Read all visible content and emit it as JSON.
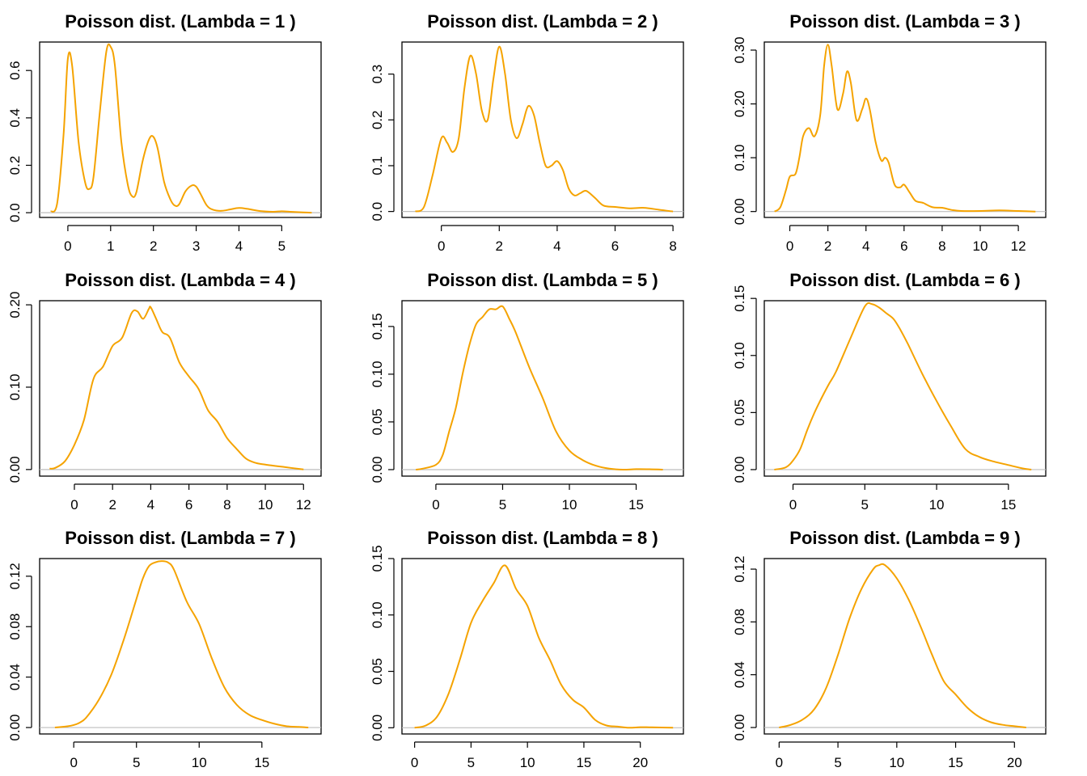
{
  "style": {
    "line_color": "#F5A300",
    "baseline_color": "#BEBEBE"
  },
  "chart_data": [
    {
      "type": "line",
      "title": "Poisson dist. (Lambda = 1 )",
      "xlabel": "",
      "ylabel": "",
      "xlim": [
        -0.66,
        5.92
      ],
      "ylim": [
        -0.02,
        0.72
      ],
      "xticks": [
        0,
        1,
        2,
        3,
        4,
        5
      ],
      "yticks": [
        0.0,
        0.2,
        0.4,
        0.6
      ],
      "ytick_labels": [
        "0.0",
        "0.2",
        "0.4",
        "0.6"
      ],
      "baseline": 0,
      "series": [
        {
          "x": [
            -0.4,
            -0.25,
            -0.1,
            0,
            0.1,
            0.25,
            0.4,
            0.5,
            0.6,
            0.75,
            0.9,
            1,
            1.1,
            1.25,
            1.4,
            1.5,
            1.6,
            1.75,
            1.9,
            2,
            2.1,
            2.25,
            2.4,
            2.5,
            2.6,
            2.75,
            2.9,
            3,
            3.1,
            3.25,
            3.4,
            3.6,
            3.8,
            4,
            4.2,
            4.5,
            4.8,
            5,
            5.2,
            5.5,
            5.7
          ],
          "y": [
            0.005,
            0.04,
            0.33,
            0.65,
            0.62,
            0.3,
            0.13,
            0.1,
            0.15,
            0.43,
            0.68,
            0.7,
            0.62,
            0.3,
            0.12,
            0.07,
            0.085,
            0.22,
            0.31,
            0.32,
            0.27,
            0.13,
            0.055,
            0.03,
            0.035,
            0.09,
            0.115,
            0.11,
            0.08,
            0.03,
            0.012,
            0.008,
            0.014,
            0.02,
            0.016,
            0.007,
            0.004,
            0.006,
            0.004,
            0.001,
            0.0
          ]
        }
      ]
    },
    {
      "type": "line",
      "title": "Poisson dist. (Lambda = 2 )",
      "xlabel": "",
      "ylabel": "",
      "xlim": [
        -1.36,
        8.36
      ],
      "ylim": [
        -0.013,
        0.37
      ],
      "xticks": [
        0,
        2,
        4,
        6,
        8
      ],
      "yticks": [
        0.0,
        0.1,
        0.2,
        0.3
      ],
      "ytick_labels": [
        "0.0",
        "0.1",
        "0.2",
        "0.3"
      ],
      "baseline": 0,
      "series": [
        {
          "x": [
            -0.9,
            -0.6,
            -0.3,
            0,
            0.2,
            0.4,
            0.6,
            0.8,
            1,
            1.2,
            1.4,
            1.6,
            1.8,
            2,
            2.2,
            2.4,
            2.6,
            2.8,
            3,
            3.2,
            3.4,
            3.6,
            3.8,
            4,
            4.2,
            4.4,
            4.6,
            4.8,
            5,
            5.3,
            5.6,
            6,
            6.5,
            7,
            7.5,
            8
          ],
          "y": [
            0.0,
            0.01,
            0.08,
            0.16,
            0.15,
            0.13,
            0.16,
            0.27,
            0.34,
            0.3,
            0.22,
            0.2,
            0.29,
            0.36,
            0.3,
            0.2,
            0.16,
            0.19,
            0.23,
            0.21,
            0.15,
            0.1,
            0.1,
            0.11,
            0.09,
            0.05,
            0.035,
            0.04,
            0.045,
            0.03,
            0.013,
            0.01,
            0.007,
            0.008,
            0.004,
            0.0
          ]
        }
      ]
    },
    {
      "type": "line",
      "title": "Poisson dist. (Lambda = 3 )",
      "xlabel": "",
      "ylabel": "",
      "xlim": [
        -1.34,
        13.44
      ],
      "ylim": [
        -0.011,
        0.315
      ],
      "xticks": [
        0,
        2,
        4,
        6,
        8,
        10,
        12
      ],
      "yticks": [
        0.0,
        0.1,
        0.2,
        0.3
      ],
      "ytick_labels": [
        "0.00",
        "0.10",
        "0.20",
        "0.30"
      ],
      "baseline": 0,
      "series": [
        {
          "x": [
            -0.8,
            -0.5,
            -0.2,
            0,
            0.3,
            0.5,
            0.7,
            1,
            1.3,
            1.6,
            1.8,
            2,
            2.2,
            2.5,
            2.8,
            3,
            3.2,
            3.5,
            3.8,
            4,
            4.2,
            4.5,
            4.8,
            5,
            5.2,
            5.5,
            5.8,
            6,
            6.3,
            6.6,
            7,
            7.5,
            8,
            8.5,
            9,
            10,
            11,
            12,
            12.9
          ],
          "y": [
            0.0,
            0.008,
            0.04,
            0.065,
            0.07,
            0.1,
            0.14,
            0.155,
            0.14,
            0.18,
            0.27,
            0.31,
            0.27,
            0.19,
            0.22,
            0.26,
            0.24,
            0.17,
            0.19,
            0.21,
            0.19,
            0.13,
            0.095,
            0.1,
            0.09,
            0.05,
            0.045,
            0.05,
            0.035,
            0.02,
            0.016,
            0.008,
            0.007,
            0.003,
            0.001,
            0.001,
            0.002,
            0.001,
            0.0
          ]
        }
      ]
    },
    {
      "type": "line",
      "title": "Poisson dist. (Lambda = 4 )",
      "xlabel": "",
      "ylabel": "",
      "xlim": [
        -1.82,
        12.92
      ],
      "ylim": [
        -0.008,
        0.205
      ],
      "xticks": [
        0,
        2,
        4,
        6,
        8,
        10,
        12
      ],
      "yticks": [
        0.0,
        0.1,
        0.2
      ],
      "ytick_labels": [
        "0.00",
        "0.10",
        "0.20"
      ],
      "baseline": 0,
      "series": [
        {
          "x": [
            -1.3,
            -1,
            -0.5,
            0,
            0.5,
            1,
            1.5,
            2,
            2.5,
            3,
            3.3,
            3.6,
            3.9,
            4,
            4.3,
            4.6,
            5,
            5.5,
            6,
            6.5,
            7,
            7.5,
            8,
            8.5,
            9,
            9.5,
            10,
            11,
            12
          ],
          "y": [
            0.001,
            0.002,
            0.01,
            0.03,
            0.06,
            0.11,
            0.125,
            0.15,
            0.16,
            0.19,
            0.192,
            0.183,
            0.195,
            0.197,
            0.182,
            0.167,
            0.16,
            0.13,
            0.113,
            0.098,
            0.072,
            0.058,
            0.038,
            0.025,
            0.013,
            0.008,
            0.006,
            0.003,
            0.0
          ]
        }
      ]
    },
    {
      "type": "line",
      "title": "Poisson dist. (Lambda = 5 )",
      "xlabel": "",
      "ylabel": "",
      "xlim": [
        -2.54,
        18.54
      ],
      "ylim": [
        -0.0068,
        0.177
      ],
      "xticks": [
        0,
        5,
        10,
        15
      ],
      "yticks": [
        0.0,
        0.05,
        0.1,
        0.15
      ],
      "ytick_labels": [
        "0.00",
        "0.05",
        "0.10",
        "0.15"
      ],
      "baseline": 0,
      "series": [
        {
          "x": [
            -1.5,
            -1,
            0,
            0.5,
            1,
            1.5,
            2,
            2.5,
            3,
            3.5,
            4,
            4.5,
            5,
            5.5,
            6,
            7,
            8,
            9,
            10,
            11,
            12,
            13,
            14,
            15,
            16,
            17
          ],
          "y": [
            0.0,
            0.001,
            0.005,
            0.015,
            0.04,
            0.065,
            0.1,
            0.13,
            0.152,
            0.16,
            0.168,
            0.168,
            0.171,
            0.158,
            0.143,
            0.107,
            0.075,
            0.04,
            0.02,
            0.01,
            0.004,
            0.001,
            0.0,
            0.0005,
            0.0004,
            0.0
          ]
        }
      ]
    },
    {
      "type": "line",
      "title": "Poisson dist. (Lambda = 6 )",
      "xlabel": "",
      "ylabel": "",
      "xlim": [
        -2.0,
        17.6
      ],
      "ylim": [
        -0.0057,
        0.148
      ],
      "xticks": [
        0,
        5,
        10,
        15
      ],
      "yticks": [
        0.0,
        0.05,
        0.1,
        0.15
      ],
      "ytick_labels": [
        "0.00",
        "0.05",
        "0.10",
        "0.15"
      ],
      "baseline": 0,
      "series": [
        {
          "x": [
            -1.3,
            -0.5,
            0,
            0.5,
            1,
            1.5,
            2,
            2.5,
            3,
            4,
            5,
            5.5,
            6,
            6.5,
            7,
            7.5,
            8,
            9,
            10,
            11,
            12,
            13,
            14,
            15,
            16,
            16.6
          ],
          "y": [
            0.0,
            0.002,
            0.008,
            0.018,
            0.035,
            0.05,
            0.063,
            0.075,
            0.086,
            0.115,
            0.143,
            0.145,
            0.142,
            0.137,
            0.132,
            0.122,
            0.11,
            0.084,
            0.06,
            0.038,
            0.018,
            0.011,
            0.007,
            0.004,
            0.001,
            0.0
          ]
        }
      ]
    },
    {
      "type": "line",
      "title": "Poisson dist. (Lambda = 7 )",
      "xlabel": "",
      "ylabel": "",
      "xlim": [
        -2.72,
        19.72
      ],
      "ylim": [
        -0.0051,
        0.134
      ],
      "xticks": [
        0,
        5,
        10,
        15
      ],
      "yticks": [
        0.0,
        0.04,
        0.08,
        0.12
      ],
      "ytick_labels": [
        "0.00",
        "0.04",
        "0.08",
        "0.12"
      ],
      "baseline": 0,
      "series": [
        {
          "x": [
            -1.5,
            -0.5,
            0,
            0.5,
            1,
            2,
            3,
            4,
            5,
            5.5,
            6,
            6.5,
            7,
            7.5,
            8,
            9,
            10,
            11,
            12,
            13,
            14,
            15,
            16,
            17,
            18,
            18.7
          ],
          "y": [
            0.0,
            0.001,
            0.002,
            0.004,
            0.008,
            0.022,
            0.042,
            0.07,
            0.102,
            0.118,
            0.128,
            0.131,
            0.132,
            0.131,
            0.125,
            0.1,
            0.082,
            0.055,
            0.032,
            0.018,
            0.01,
            0.006,
            0.003,
            0.001,
            0.0005,
            0.0
          ]
        }
      ]
    },
    {
      "type": "line",
      "title": "Poisson dist. (Lambda = 8 )",
      "xlabel": "",
      "ylabel": "",
      "xlim": [
        -1.12,
        23.82
      ],
      "ylim": [
        -0.0055,
        0.15
      ],
      "xticks": [
        0,
        5,
        10,
        15,
        20
      ],
      "yticks": [
        0.0,
        0.05,
        0.1,
        0.15
      ],
      "ytick_labels": [
        "0.00",
        "0.05",
        "0.10",
        "0.15"
      ],
      "baseline": 0,
      "series": [
        {
          "x": [
            0,
            1,
            2,
            3,
            4,
            5,
            6,
            7,
            8,
            9,
            10,
            11,
            12,
            13,
            14,
            15,
            16,
            17,
            18,
            19,
            20,
            21,
            22.9
          ],
          "y": [
            0.0,
            0.002,
            0.01,
            0.03,
            0.06,
            0.093,
            0.112,
            0.128,
            0.144,
            0.123,
            0.108,
            0.08,
            0.06,
            0.038,
            0.025,
            0.018,
            0.007,
            0.002,
            0.001,
            0.0,
            0.0005,
            0.0004,
            0.0
          ]
        }
      ]
    },
    {
      "type": "line",
      "title": "Poisson dist. (Lambda = 9 )",
      "xlabel": "",
      "ylabel": "",
      "xlim": [
        -1.26,
        22.66
      ],
      "ylim": [
        -0.0049,
        0.128
      ],
      "xticks": [
        0,
        5,
        10,
        15,
        20
      ],
      "yticks": [
        0.0,
        0.04,
        0.08,
        0.12
      ],
      "ytick_labels": [
        "0.00",
        "0.04",
        "0.08",
        "0.12"
      ],
      "baseline": 0,
      "series": [
        {
          "x": [
            0,
            1,
            2,
            3,
            4,
            5,
            6,
            7,
            8,
            8.5,
            9,
            10,
            11,
            12,
            13,
            14,
            15,
            16,
            17,
            18,
            19,
            20,
            21
          ],
          "y": [
            0.0,
            0.002,
            0.006,
            0.014,
            0.03,
            0.055,
            0.083,
            0.105,
            0.12,
            0.123,
            0.123,
            0.113,
            0.097,
            0.077,
            0.055,
            0.035,
            0.025,
            0.015,
            0.008,
            0.004,
            0.002,
            0.001,
            0.0
          ]
        }
      ]
    }
  ]
}
